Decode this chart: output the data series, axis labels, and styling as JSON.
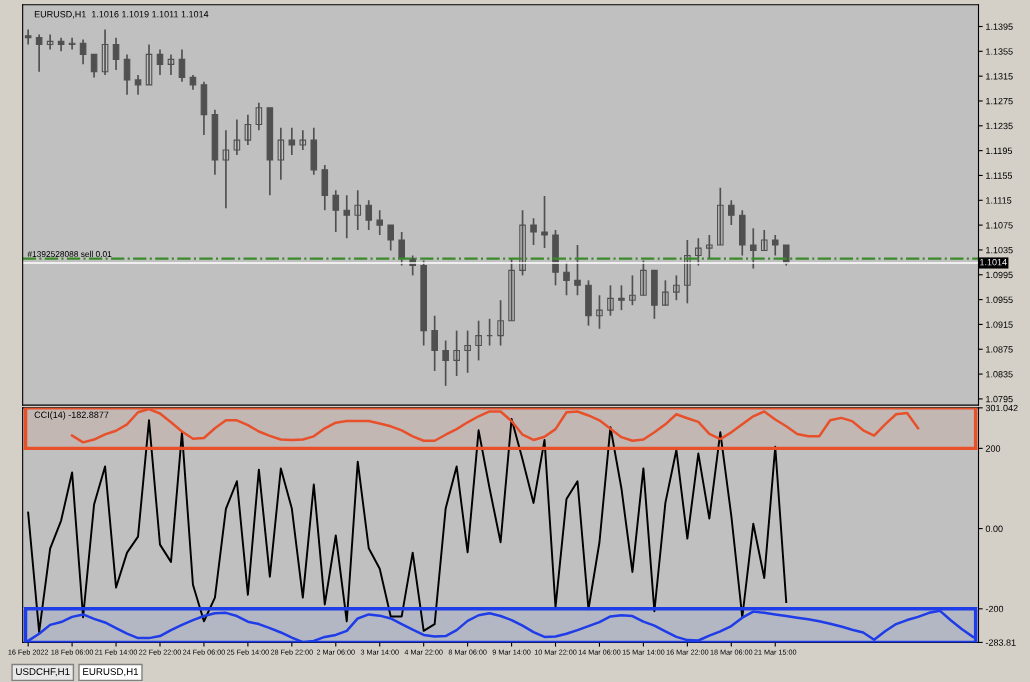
{
  "chart_data": [
    {
      "type": "candlestick",
      "title": "EURUSD,H1  1.1016 1.1019 1.1011 1.1014",
      "color": "#505050",
      "tick_labels": "y",
      "categories": [
        null,
        null,
        null,
        null,
        null,
        null,
        null,
        null,
        null,
        null,
        null,
        null,
        null,
        null,
        null,
        null,
        null,
        null,
        null,
        null,
        null,
        null,
        null,
        null,
        null,
        null,
        null,
        null,
        null,
        null,
        null,
        null,
        null,
        null,
        null,
        null,
        null,
        null,
        null,
        null,
        null,
        null,
        null,
        null,
        null,
        null,
        null,
        null,
        null,
        null,
        null,
        null,
        null,
        null,
        null,
        null,
        null,
        null,
        null,
        null,
        null,
        null,
        null,
        null,
        null,
        null,
        null,
        null,
        null,
        null,
        null,
        null,
        null,
        null,
        null,
        null,
        null,
        null,
        null,
        null,
        null,
        null,
        null,
        null,
        null,
        null,
        null
      ],
      "ohlc": [
        [
          1.138,
          1.139,
          1.1366,
          1.1377
        ],
        [
          1.1377,
          1.1382,
          1.1322,
          1.1366
        ],
        [
          1.1366,
          1.1382,
          1.1358,
          1.1371
        ],
        [
          1.1371,
          1.1377,
          1.1355,
          1.1366
        ],
        [
          1.1366,
          1.1377,
          1.1358,
          1.1368
        ],
        [
          1.1368,
          1.1374,
          1.1334,
          1.135
        ],
        [
          1.135,
          1.135,
          1.1313,
          1.1322
        ],
        [
          1.1322,
          1.139,
          1.1317,
          1.1366
        ],
        [
          1.1366,
          1.1377,
          1.1325,
          1.1342
        ],
        [
          1.1342,
          1.135,
          1.1285,
          1.1309
        ],
        [
          1.1309,
          1.1317,
          1.1285,
          1.1301
        ],
        [
          1.1301,
          1.1366,
          1.1301,
          1.135
        ],
        [
          1.135,
          1.1358,
          1.1317,
          1.1334
        ],
        [
          1.1334,
          1.135,
          1.1317,
          1.1342
        ],
        [
          1.1342,
          1.1358,
          1.1306,
          1.1313
        ],
        [
          1.1313,
          1.1317,
          1.1293,
          1.1301
        ],
        [
          1.1301,
          1.1306,
          1.122,
          1.1253
        ],
        [
          1.1253,
          1.1261,
          1.1156,
          1.118
        ],
        [
          1.118,
          1.1228,
          1.1102,
          1.1196
        ],
        [
          1.1196,
          1.1245,
          1.1188,
          1.1212
        ],
        [
          1.1212,
          1.1253,
          1.1204,
          1.1237
        ],
        [
          1.1237,
          1.1272,
          1.1228,
          1.1264
        ],
        [
          1.1264,
          1.1264,
          1.1123,
          1.118
        ],
        [
          1.118,
          1.1232,
          1.1148,
          1.1212
        ],
        [
          1.1212,
          1.1232,
          1.1188,
          1.1204
        ],
        [
          1.1204,
          1.1228,
          1.1196,
          1.1212
        ],
        [
          1.1212,
          1.1232,
          1.1156,
          1.1164
        ],
        [
          1.1164,
          1.1172,
          1.1099,
          1.1123
        ],
        [
          1.1123,
          1.1131,
          1.1064,
          1.1099
        ],
        [
          1.1099,
          1.1123,
          1.1054,
          1.1091
        ],
        [
          1.1091,
          1.1131,
          1.1067,
          1.1107
        ],
        [
          1.1107,
          1.1115,
          1.1067,
          1.1083
        ],
        [
          1.1083,
          1.1099,
          1.1059,
          1.1075
        ],
        [
          1.1075,
          1.1075,
          1.1034,
          1.1051
        ],
        [
          1.1051,
          1.1064,
          1.101,
          1.1021
        ],
        [
          1.1021,
          1.1026,
          1.0994,
          1.101
        ],
        [
          1.101,
          1.1018,
          1.0881,
          1.0905
        ],
        [
          1.0905,
          1.0929,
          1.084,
          1.0873
        ],
        [
          1.0873,
          1.0889,
          1.0816,
          1.0857
        ],
        [
          1.0857,
          1.0905,
          1.0832,
          1.0873
        ],
        [
          1.0873,
          1.0905,
          1.0837,
          1.0881
        ],
        [
          1.0881,
          1.0921,
          1.0857,
          1.0897
        ],
        [
          1.0897,
          1.0924,
          1.0881,
          1.0897
        ],
        [
          1.0897,
          1.0954,
          1.0881,
          1.0921
        ],
        [
          1.0921,
          1.1021,
          1.0921,
          1.1002
        ],
        [
          1.1002,
          1.1099,
          1.0994,
          1.1075
        ],
        [
          1.1075,
          1.1086,
          1.1043,
          1.1064
        ],
        [
          1.1064,
          1.1122,
          1.1038,
          1.1059
        ],
        [
          1.1059,
          1.1067,
          1.0978,
          1.0999
        ],
        [
          1.0999,
          1.1015,
          1.0962,
          1.0986
        ],
        [
          1.0986,
          1.1043,
          1.0962,
          1.0978
        ],
        [
          1.0978,
          1.0986,
          1.0913,
          1.0929
        ],
        [
          1.0929,
          1.0962,
          1.0908,
          1.0938
        ],
        [
          1.0938,
          1.0978,
          1.0929,
          1.0957
        ],
        [
          1.0957,
          1.0978,
          1.0938,
          1.0954
        ],
        [
          1.0954,
          1.0994,
          1.0946,
          1.0962
        ],
        [
          1.0962,
          1.1018,
          1.0962,
          1.1002
        ],
        [
          1.1002,
          1.1002,
          1.0924,
          1.0946
        ],
        [
          1.0946,
          1.0986,
          1.0946,
          1.0967
        ],
        [
          1.0967,
          1.0994,
          1.0954,
          1.0978
        ],
        [
          1.0978,
          1.1051,
          1.0949,
          1.1026
        ],
        [
          1.1026,
          1.1054,
          1.101,
          1.1038
        ],
        [
          1.1038,
          1.1059,
          1.1021,
          1.1043
        ],
        [
          1.1043,
          1.1135,
          1.1043,
          1.1107
        ],
        [
          1.1107,
          1.1115,
          1.1075,
          1.1091
        ],
        [
          1.1091,
          1.1099,
          1.1026,
          1.1043
        ],
        [
          1.1043,
          1.107,
          1.1005,
          1.1034
        ],
        [
          1.1034,
          1.1067,
          1.1034,
          1.1051
        ],
        [
          1.1051,
          1.1059,
          1.1026,
          1.1043
        ],
        [
          1.1043,
          1.1043,
          1.101,
          1.1014
        ],
        null,
        null,
        null,
        null,
        null,
        null,
        null,
        null,
        null,
        null,
        null,
        null,
        null,
        null,
        null,
        null,
        null
      ],
      "ylim": [
        1.0785,
        1.143
      ],
      "yticks": [
        1.0795,
        1.0835,
        1.0875,
        1.0915,
        1.0955,
        1.0995,
        1.1035,
        1.1075,
        1.1115,
        1.1155,
        1.1195,
        1.1235,
        1.1275,
        1.1315,
        1.1355,
        1.1395
      ],
      "ref_lines": [
        {
          "axis": "y",
          "value": 1.1021,
          "label": "#1392528088 sell 0.01",
          "color": "#3a8a2a",
          "line_style": "dashdot"
        },
        {
          "axis": "y",
          "value": 1.1014,
          "label": "1.1014",
          "color": "#ffffff",
          "line_style": "solid"
        }
      ]
    },
    {
      "type": "line",
      "title": "CCI(14) -182.8877",
      "categories": [
        "16 Feb 2022",
        null,
        null,
        null,
        "18 Feb 06:00",
        null,
        null,
        null,
        "21 Feb 14:00",
        null,
        null,
        null,
        "22 Feb 22:00",
        null,
        null,
        null,
        "24 Feb 06:00",
        null,
        null,
        null,
        "25 Feb 14:00",
        null,
        null,
        null,
        "28 Feb 22:00",
        null,
        null,
        null,
        "2 Mar 06:00",
        null,
        null,
        null,
        "3 Mar 14:00",
        null,
        null,
        null,
        "4 Mar 22:00",
        null,
        null,
        null,
        "8 Mar 06:00",
        null,
        null,
        null,
        "9 Mar 14:00",
        null,
        null,
        null,
        "10 Mar 22:00",
        null,
        null,
        null,
        "14 Mar 06:00",
        null,
        null,
        null,
        "15 Mar 14:00",
        null,
        null,
        null,
        "16 Mar 22:00",
        null,
        null,
        null,
        "18 Mar 06:00",
        null,
        null,
        null,
        "21 Mar 15:00",
        null,
        null,
        null,
        null,
        null,
        null,
        null,
        null,
        null,
        null,
        null,
        null,
        null,
        null,
        null,
        null,
        null,
        null
      ],
      "series": [
        {
          "color": "#000000",
          "values": [
            40,
            -258,
            -50,
            20,
            140,
            -221,
            60,
            155,
            -147,
            -60,
            -20,
            270,
            -40,
            -83,
            240,
            -140,
            -231,
            -172,
            49,
            118,
            -165,
            147,
            -120,
            150,
            50,
            -172,
            110,
            -189,
            -17,
            -231,
            167,
            -49,
            -100,
            -219,
            -219,
            -60,
            -255,
            -238,
            50,
            155,
            -59,
            245,
            100,
            -34,
            273,
            172,
            64,
            221,
            -196,
            74,
            118,
            -201,
            -34,
            253,
            100,
            -108,
            150,
            -206,
            64,
            196,
            -25,
            187,
            25,
            240,
            32,
            -221,
            12,
            -123,
            204,
            -183,
            null,
            null,
            null,
            null,
            null,
            null,
            null,
            null,
            null,
            null,
            null,
            null,
            null,
            null,
            null,
            null,
            null
          ]
        },
        {
          "color": "#e8502a",
          "values": [
            null,
            null,
            null,
            null,
            232,
            215,
            222,
            235,
            244,
            260,
            290,
            298,
            287,
            265,
            242,
            224,
            226,
            250,
            270,
            270,
            258,
            242,
            231,
            222,
            221,
            222,
            230,
            250,
            264,
            268,
            268,
            268,
            262,
            255,
            245,
            230,
            219,
            219,
            234,
            248,
            265,
            280,
            292,
            292,
            268,
            234,
            221,
            229,
            248,
            290,
            292,
            282,
            270,
            249,
            228,
            219,
            222,
            240,
            260,
            285,
            275,
            266,
            236,
            223,
            240,
            260,
            280,
            292,
            272,
            255,
            236,
            230,
            230,
            270,
            276,
            268,
            245,
            232,
            260,
            285,
            288,
            250,
            null,
            null,
            null,
            null,
            null
          ]
        },
        {
          "color": "#1e3ce8",
          "values": [
            -280,
            -262,
            -240,
            -233,
            -220,
            -214,
            -225,
            -234,
            -248,
            -262,
            -273,
            -273,
            -268,
            -253,
            -240,
            -228,
            -218,
            -211,
            -210,
            -218,
            -232,
            -238,
            -248,
            -259,
            -272,
            -283,
            -280,
            -270,
            -265,
            -255,
            -224,
            -214,
            -217,
            -224,
            -238,
            -252,
            -265,
            -269,
            -268,
            -253,
            -230,
            -216,
            -211,
            -218,
            -228,
            -242,
            -258,
            -270,
            -269,
            -262,
            -253,
            -243,
            -233,
            -219,
            -216,
            -218,
            -232,
            -242,
            -256,
            -270,
            -278,
            -279,
            -267,
            -256,
            -243,
            -222,
            -207,
            -210,
            -214,
            -218,
            -222,
            -226,
            -231,
            -237,
            -244,
            -252,
            -259,
            -277,
            -256,
            -238,
            -228,
            -220,
            -210,
            -205,
            -229,
            -251,
            -270
          ]
        }
      ],
      "ylim": [
        -283.81,
        301.042
      ],
      "yticks": [
        {
          "value": 301.042,
          "label": "301.042"
        },
        200,
        {
          "value": 0,
          "label": "0.00"
        },
        -200,
        {
          "value": -283.81,
          "label": "-283.81"
        }
      ],
      "ref_lines": [
        {
          "axis": "y",
          "value": 200,
          "line_style": "dotted",
          "color": "#f0a070"
        },
        {
          "axis": "y",
          "value": -200,
          "line_style": "dotted",
          "color": "#f0f0f0"
        }
      ],
      "bands": [
        {
          "axis": "y",
          "from": 200,
          "to": 301.042,
          "color": "#e8502a"
        },
        {
          "axis": "y",
          "from": -283.81,
          "to": -200,
          "color": "#1e3ce8"
        }
      ],
      "annotations": [
        "USDCHF,H1",
        "EURUSD,H1"
      ]
    }
  ]
}
